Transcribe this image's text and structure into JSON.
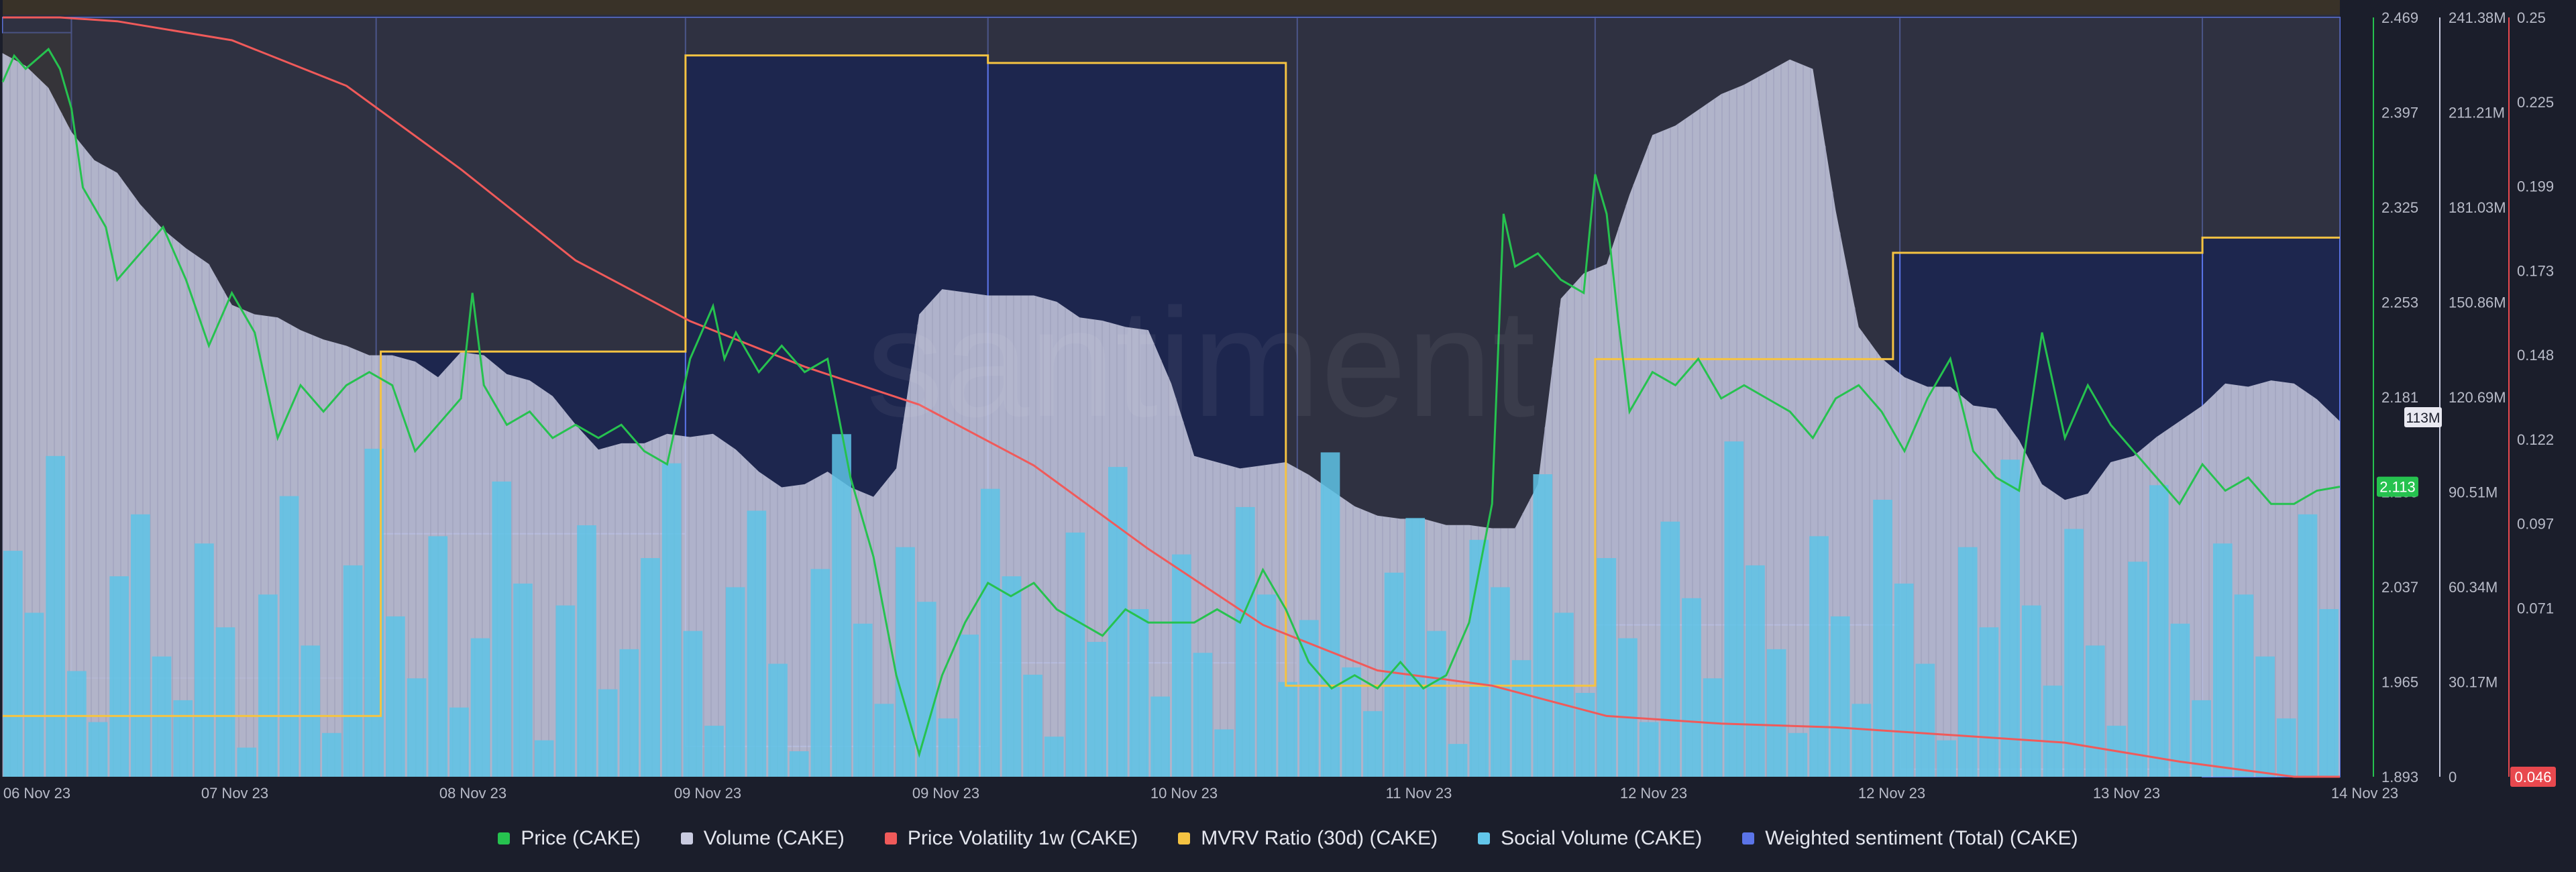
{
  "chart_data": {
    "type": "line",
    "title": "",
    "watermark": "santiment",
    "x_axis": {
      "ticks": [
        "06 Nov 23",
        "07 Nov 23",
        "08 Nov 23",
        "09 Nov 23",
        "09 Nov 23",
        "10 Nov 23",
        "11 Nov 23",
        "12 Nov 23",
        "12 Nov 23",
        "13 Nov 23",
        "14 Nov 23"
      ]
    },
    "y_axes": {
      "price": {
        "ticks": [
          "2.469",
          "2.397",
          "2.325",
          "2.253",
          "2.181",
          "2.109",
          "2.037",
          "1.965",
          "1.893"
        ],
        "range": [
          1.893,
          2.469
        ],
        "current": "2.113",
        "color": "#26c24f"
      },
      "volume": {
        "ticks": [
          "241.38M",
          "211.21M",
          "181.03M",
          "150.86M",
          "120.69M",
          "90.51M",
          "60.34M",
          "30.17M",
          "0"
        ],
        "range": [
          0,
          241.38
        ],
        "current": "113M",
        "unit": "M"
      },
      "volatility": {
        "ticks": [
          "0.25",
          "0.225",
          "0.199",
          "0.173",
          "0.148",
          "0.122",
          "0.097",
          "0.071"
        ],
        "range": [
          0.046,
          0.25
        ],
        "current": "0.046",
        "color": "#e8484e"
      }
    },
    "legend": [
      {
        "name": "Price (CAKE)",
        "color": "#26c24f"
      },
      {
        "name": "Volume (CAKE)",
        "color": "#c9cbe0"
      },
      {
        "name": "Price Volatility 1w (CAKE)",
        "color": "#f05a5a"
      },
      {
        "name": "MVRV Ratio (30d) (CAKE)",
        "color": "#f5c342"
      },
      {
        "name": "Social Volume (CAKE)",
        "color": "#62c6ea"
      },
      {
        "name": "Weighted sentiment (Total) (CAKE)",
        "color": "#5b74e8"
      }
    ],
    "series": {
      "volume_M": [
        [
          0,
          230
        ],
        [
          0.1,
          226
        ],
        [
          0.2,
          219
        ],
        [
          0.3,
          205
        ],
        [
          0.4,
          196
        ],
        [
          0.5,
          192
        ],
        [
          0.6,
          182
        ],
        [
          0.7,
          174
        ],
        [
          0.8,
          168
        ],
        [
          0.9,
          163
        ],
        [
          1.0,
          150
        ],
        [
          1.1,
          147
        ],
        [
          1.2,
          146
        ],
        [
          1.3,
          142
        ],
        [
          1.4,
          139
        ],
        [
          1.5,
          137
        ],
        [
          1.6,
          134
        ],
        [
          1.7,
          134
        ],
        [
          1.8,
          132
        ],
        [
          1.9,
          127
        ],
        [
          2.0,
          135
        ],
        [
          2.1,
          134
        ],
        [
          2.2,
          128
        ],
        [
          2.3,
          126
        ],
        [
          2.4,
          121
        ],
        [
          2.5,
          112
        ],
        [
          2.6,
          104
        ],
        [
          2.7,
          106
        ],
        [
          2.8,
          106
        ],
        [
          2.9,
          109
        ],
        [
          3.0,
          108
        ],
        [
          3.1,
          109
        ],
        [
          3.2,
          104
        ],
        [
          3.3,
          97
        ],
        [
          3.4,
          92
        ],
        [
          3.5,
          93
        ],
        [
          3.6,
          97
        ],
        [
          3.7,
          92
        ],
        [
          3.8,
          89
        ],
        [
          3.9,
          98
        ],
        [
          4.0,
          147
        ],
        [
          4.1,
          155
        ],
        [
          4.2,
          154
        ],
        [
          4.3,
          153
        ],
        [
          4.4,
          153
        ],
        [
          4.5,
          153
        ],
        [
          4.6,
          151
        ],
        [
          4.7,
          146
        ],
        [
          4.8,
          145
        ],
        [
          4.9,
          143
        ],
        [
          5.0,
          142
        ],
        [
          5.1,
          125
        ],
        [
          5.2,
          102
        ],
        [
          5.3,
          100
        ],
        [
          5.4,
          98
        ],
        [
          5.5,
          99
        ],
        [
          5.6,
          100
        ],
        [
          5.7,
          96
        ],
        [
          5.8,
          91
        ],
        [
          5.9,
          86
        ],
        [
          6.0,
          83
        ],
        [
          6.1,
          82
        ],
        [
          6.2,
          82
        ],
        [
          6.3,
          80
        ],
        [
          6.4,
          80
        ],
        [
          6.5,
          79
        ],
        [
          6.6,
          79
        ],
        [
          6.7,
          93
        ],
        [
          6.8,
          152
        ],
        [
          6.9,
          160
        ],
        [
          7.0,
          163
        ],
        [
          7.1,
          185
        ],
        [
          7.2,
          204
        ],
        [
          7.3,
          207
        ],
        [
          7.4,
          212
        ],
        [
          7.5,
          217
        ],
        [
          7.6,
          220
        ],
        [
          7.7,
          224
        ],
        [
          7.8,
          228
        ],
        [
          7.9,
          225
        ],
        [
          8.0,
          180
        ],
        [
          8.1,
          143
        ],
        [
          8.2,
          133
        ],
        [
          8.3,
          127
        ],
        [
          8.4,
          124
        ],
        [
          8.5,
          124
        ],
        [
          8.6,
          118
        ],
        [
          8.7,
          117
        ],
        [
          8.8,
          107
        ],
        [
          8.9,
          93
        ],
        [
          9.0,
          88
        ],
        [
          9.1,
          90
        ],
        [
          9.2,
          100
        ],
        [
          9.3,
          102
        ],
        [
          9.4,
          108
        ],
        [
          9.5,
          113
        ],
        [
          9.6,
          118
        ],
        [
          9.7,
          125
        ],
        [
          9.8,
          124
        ],
        [
          9.9,
          126
        ],
        [
          10.0,
          125
        ],
        [
          10.1,
          120
        ],
        [
          10.2,
          113
        ]
      ],
      "social_volume_norm": [
        0.62,
        0.45,
        0.88,
        0.29,
        0.15,
        0.55,
        0.72,
        0.33,
        0.21,
        0.64,
        0.41,
        0.08,
        0.5,
        0.77,
        0.36,
        0.12,
        0.58,
        0.9,
        0.44,
        0.27,
        0.66,
        0.19,
        0.38,
        0.81,
        0.53,
        0.1,
        0.47,
        0.69,
        0.24,
        0.35,
        0.6,
        0.86,
        0.4,
        0.14,
        0.52,
        0.73,
        0.31,
        0.07,
        0.57,
        0.94,
        0.42,
        0.2,
        0.63,
        0.48,
        0.16,
        0.39,
        0.79,
        0.55,
        0.28,
        0.11,
        0.67,
        0.37,
        0.85,
        0.46,
        0.22,
        0.61,
        0.34,
        0.13,
        0.74,
        0.5,
        0.26,
        0.43,
        0.89,
        0.3,
        0.18,
        0.56,
        0.71,
        0.4,
        0.09,
        0.65,
        0.52,
        0.32,
        0.83,
        0.45,
        0.23,
        0.6,
        0.38,
        0.15,
        0.7,
        0.49,
        0.27,
        0.92,
        0.58,
        0.35,
        0.12,
        0.66,
        0.44,
        0.2,
        0.76,
        0.53,
        0.31,
        0.1,
        0.63,
        0.41,
        0.87,
        0.47,
        0.25,
        0.68,
        0.36,
        0.14,
        0.59,
        0.8,
        0.42,
        0.21,
        0.64,
        0.5,
        0.33,
        0.16,
        0.72,
        0.46
      ],
      "mvrv_steps": [
        [
          0,
          0.08
        ],
        [
          1.65,
          0.08
        ],
        [
          1.65,
          0.56
        ],
        [
          2.98,
          0.56
        ],
        [
          2.98,
          0.95
        ],
        [
          4.3,
          0.95
        ],
        [
          4.3,
          0.94
        ],
        [
          5.6,
          0.94
        ],
        [
          5.6,
          0.12
        ],
        [
          6.95,
          0.12
        ],
        [
          6.95,
          0.55
        ],
        [
          8.25,
          0.55
        ],
        [
          8.25,
          0.69
        ],
        [
          9.6,
          0.69
        ],
        [
          9.6,
          0.71
        ],
        [
          10.2,
          0.71
        ]
      ],
      "sentiment_blocks": [
        [
          0,
          1.0,
          0.3,
          0.98
        ],
        [
          0.3,
          1.0,
          1.63,
          0.13
        ],
        [
          1.63,
          1.0,
          2.98,
          0.32
        ],
        [
          2.98,
          1.0,
          4.3,
          0.04
        ],
        [
          4.3,
          1.0,
          5.65,
          0.15
        ],
        [
          5.65,
          1.0,
          6.95,
          0.12
        ],
        [
          6.95,
          1.0,
          8.28,
          0.2
        ],
        [
          8.28,
          1.0,
          9.6,
          0.01
        ],
        [
          9.6,
          1.0,
          10.2,
          0.0
        ]
      ],
      "volatility_norm": [
        [
          0,
          1.0
        ],
        [
          0.25,
          1.0
        ],
        [
          0.5,
          0.995
        ],
        [
          1.0,
          0.97
        ],
        [
          1.5,
          0.91
        ],
        [
          2.0,
          0.8
        ],
        [
          2.5,
          0.68
        ],
        [
          3.0,
          0.6
        ],
        [
          3.5,
          0.54
        ],
        [
          4.0,
          0.49
        ],
        [
          4.5,
          0.41
        ],
        [
          5.0,
          0.3
        ],
        [
          5.5,
          0.2
        ],
        [
          6.0,
          0.14
        ],
        [
          6.5,
          0.12
        ],
        [
          7.0,
          0.08
        ],
        [
          7.5,
          0.07
        ],
        [
          8.0,
          0.065
        ],
        [
          8.5,
          0.055
        ],
        [
          9.0,
          0.045
        ],
        [
          9.5,
          0.02
        ],
        [
          10.0,
          0.0
        ],
        [
          10.2,
          0.0
        ]
      ],
      "price": [
        [
          0,
          2.42
        ],
        [
          0.05,
          2.44
        ],
        [
          0.1,
          2.43
        ],
        [
          0.2,
          2.445
        ],
        [
          0.25,
          2.43
        ],
        [
          0.3,
          2.4
        ],
        [
          0.35,
          2.34
        ],
        [
          0.45,
          2.31
        ],
        [
          0.5,
          2.27
        ],
        [
          0.6,
          2.29
        ],
        [
          0.7,
          2.31
        ],
        [
          0.8,
          2.27
        ],
        [
          0.9,
          2.22
        ],
        [
          1.0,
          2.26
        ],
        [
          1.1,
          2.23
        ],
        [
          1.2,
          2.15
        ],
        [
          1.3,
          2.19
        ],
        [
          1.4,
          2.17
        ],
        [
          1.5,
          2.19
        ],
        [
          1.6,
          2.2
        ],
        [
          1.7,
          2.19
        ],
        [
          1.8,
          2.14
        ],
        [
          1.9,
          2.16
        ],
        [
          2.0,
          2.18
        ],
        [
          2.05,
          2.26
        ],
        [
          2.1,
          2.19
        ],
        [
          2.2,
          2.16
        ],
        [
          2.3,
          2.17
        ],
        [
          2.4,
          2.15
        ],
        [
          2.5,
          2.16
        ],
        [
          2.6,
          2.15
        ],
        [
          2.7,
          2.16
        ],
        [
          2.8,
          2.14
        ],
        [
          2.9,
          2.13
        ],
        [
          3.0,
          2.21
        ],
        [
          3.1,
          2.25
        ],
        [
          3.15,
          2.21
        ],
        [
          3.2,
          2.23
        ],
        [
          3.3,
          2.2
        ],
        [
          3.4,
          2.22
        ],
        [
          3.5,
          2.2
        ],
        [
          3.6,
          2.21
        ],
        [
          3.7,
          2.12
        ],
        [
          3.8,
          2.06
        ],
        [
          3.9,
          1.97
        ],
        [
          4.0,
          1.91
        ],
        [
          4.1,
          1.97
        ],
        [
          4.2,
          2.01
        ],
        [
          4.3,
          2.04
        ],
        [
          4.4,
          2.03
        ],
        [
          4.5,
          2.04
        ],
        [
          4.6,
          2.02
        ],
        [
          4.7,
          2.01
        ],
        [
          4.8,
          2.0
        ],
        [
          4.9,
          2.02
        ],
        [
          5.0,
          2.01
        ],
        [
          5.1,
          2.01
        ],
        [
          5.2,
          2.01
        ],
        [
          5.3,
          2.02
        ],
        [
          5.4,
          2.01
        ],
        [
          5.5,
          2.05
        ],
        [
          5.6,
          2.02
        ],
        [
          5.7,
          1.98
        ],
        [
          5.8,
          1.96
        ],
        [
          5.9,
          1.97
        ],
        [
          6.0,
          1.96
        ],
        [
          6.1,
          1.98
        ],
        [
          6.2,
          1.96
        ],
        [
          6.3,
          1.97
        ],
        [
          6.4,
          2.01
        ],
        [
          6.5,
          2.1
        ],
        [
          6.55,
          2.32
        ],
        [
          6.6,
          2.28
        ],
        [
          6.7,
          2.29
        ],
        [
          6.8,
          2.27
        ],
        [
          6.9,
          2.26
        ],
        [
          6.95,
          2.35
        ],
        [
          7.0,
          2.32
        ],
        [
          7.05,
          2.24
        ],
        [
          7.1,
          2.17
        ],
        [
          7.2,
          2.2
        ],
        [
          7.3,
          2.19
        ],
        [
          7.4,
          2.21
        ],
        [
          7.5,
          2.18
        ],
        [
          7.6,
          2.19
        ],
        [
          7.7,
          2.18
        ],
        [
          7.8,
          2.17
        ],
        [
          7.9,
          2.15
        ],
        [
          8.0,
          2.18
        ],
        [
          8.1,
          2.19
        ],
        [
          8.2,
          2.17
        ],
        [
          8.3,
          2.14
        ],
        [
          8.4,
          2.18
        ],
        [
          8.5,
          2.21
        ],
        [
          8.6,
          2.14
        ],
        [
          8.7,
          2.12
        ],
        [
          8.8,
          2.11
        ],
        [
          8.9,
          2.23
        ],
        [
          9.0,
          2.15
        ],
        [
          9.1,
          2.19
        ],
        [
          9.2,
          2.16
        ],
        [
          9.3,
          2.14
        ],
        [
          9.4,
          2.12
        ],
        [
          9.5,
          2.1
        ],
        [
          9.6,
          2.13
        ],
        [
          9.7,
          2.11
        ],
        [
          9.8,
          2.12
        ],
        [
          9.9,
          2.1
        ],
        [
          10.0,
          2.1
        ],
        [
          10.1,
          2.11
        ],
        [
          10.2,
          2.113
        ]
      ]
    }
  }
}
